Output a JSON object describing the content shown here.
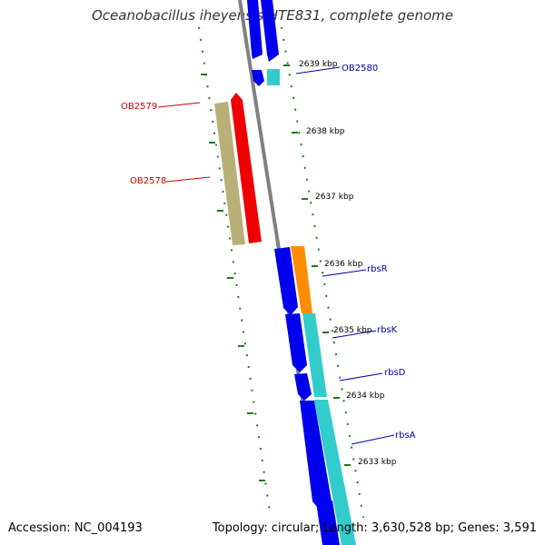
{
  "title": "Oceanobacillus iheyensis HTE831, complete genome",
  "accession": "Accession: NC_004193",
  "summary": "Topology: circular; Length: 3,630,528 bp; Genes: 3,591",
  "colors": {
    "backbone": "#808080",
    "tick": "#1f7a1f",
    "forward_gene": "#0000ee",
    "reverse_gene": "#ee0000",
    "cyan_feature": "#33cccc",
    "olive_feature": "#b8b078",
    "orange_feature": "#ff8c00",
    "label_forward": "#0000aa",
    "label_reverse": "#cc0000"
  },
  "kbp_markers": [
    "2639 kbp",
    "2638 kbp",
    "2637 kbp",
    "2636 kbp",
    "2635 kbp",
    "2634 kbp",
    "2633 kbp"
  ],
  "gene_labels": [
    {
      "name": "OB2580",
      "strand": "forward"
    },
    {
      "name": "OB2579",
      "strand": "reverse"
    },
    {
      "name": "OB2578",
      "strand": "reverse"
    },
    {
      "name": "rbsR",
      "strand": "forward"
    },
    {
      "name": "rbsK",
      "strand": "forward"
    },
    {
      "name": "rbsD",
      "strand": "forward"
    },
    {
      "name": "rbsA",
      "strand": "forward"
    }
  ]
}
